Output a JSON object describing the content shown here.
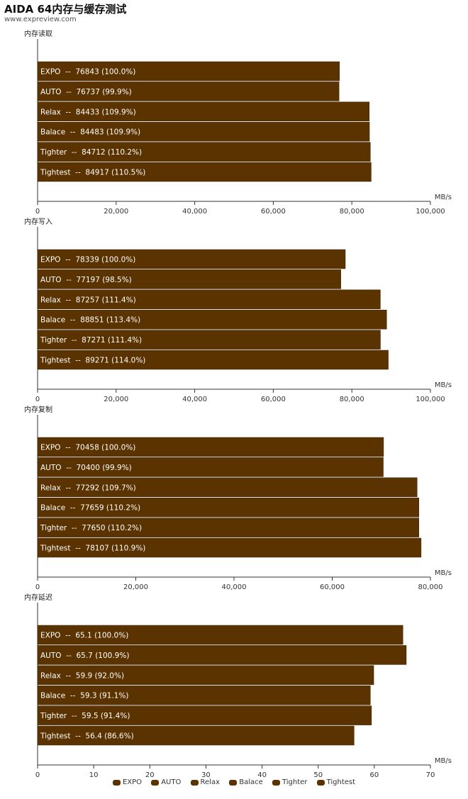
{
  "header": {
    "title": "AIDA 64内存与缓存测试",
    "subtitle": "www.expreview.com"
  },
  "colors": {
    "bar": "#5a3300",
    "bar_stroke": "#3a2000",
    "bar_text": "#ffffff",
    "axis": "#333333"
  },
  "chart_data": [
    {
      "type": "bar",
      "orientation": "horizontal",
      "title": "内存读取",
      "unit": "MB/s",
      "xlim": [
        0,
        100000
      ],
      "ticks": [
        "0",
        "20,000",
        "40,000",
        "60,000",
        "80,000",
        "100,000"
      ],
      "tick_values": [
        0,
        20000,
        40000,
        60000,
        80000,
        100000
      ],
      "categories": [
        "EXPO",
        "AUTO",
        "Relax",
        "Balace",
        "Tighter",
        "Tightest"
      ],
      "values": [
        76843,
        76737,
        84433,
        84483,
        84712,
        84917
      ],
      "labels": [
        "EXPO  --  76843 (100.0%)",
        "AUTO  --  76737 (99.9%)",
        "Relax  --  84433 (109.9%)",
        "Balace  --  84483 (109.9%)",
        "Tighter  --  84712 (110.2%)",
        "Tightest  --  84917 (110.5%)"
      ]
    },
    {
      "type": "bar",
      "orientation": "horizontal",
      "title": "内存写入",
      "unit": "MB/s",
      "xlim": [
        0,
        100000
      ],
      "ticks": [
        "0",
        "20,000",
        "40,000",
        "60,000",
        "80,000",
        "100,000"
      ],
      "tick_values": [
        0,
        20000,
        40000,
        60000,
        80000,
        100000
      ],
      "categories": [
        "EXPO",
        "AUTO",
        "Relax",
        "Balace",
        "Tighter",
        "Tightest"
      ],
      "values": [
        78339,
        77197,
        87257,
        88851,
        87271,
        89271
      ],
      "labels": [
        "EXPO  --  78339 (100.0%)",
        "AUTO  --  77197 (98.5%)",
        "Relax  --  87257 (111.4%)",
        "Balace  --  88851 (113.4%)",
        "Tighter  --  87271 (111.4%)",
        "Tightest  --  89271 (114.0%)"
      ]
    },
    {
      "type": "bar",
      "orientation": "horizontal",
      "title": "内存复制",
      "unit": "MB/s",
      "xlim": [
        0,
        80000
      ],
      "ticks": [
        "0",
        "20,000",
        "40,000",
        "60,000",
        "80,000"
      ],
      "tick_values": [
        0,
        20000,
        40000,
        60000,
        80000
      ],
      "categories": [
        "EXPO",
        "AUTO",
        "Relax",
        "Balace",
        "Tighter",
        "Tightest"
      ],
      "values": [
        70458,
        70400,
        77292,
        77659,
        77650,
        78107
      ],
      "labels": [
        "EXPO  --  70458 (100.0%)",
        "AUTO  --  70400 (99.9%)",
        "Relax  --  77292 (109.7%)",
        "Balace  --  77659 (110.2%)",
        "Tighter  --  77650 (110.2%)",
        "Tightest  --  78107 (110.9%)"
      ]
    },
    {
      "type": "bar",
      "orientation": "horizontal",
      "title": "内存延迟",
      "unit": "MB/s",
      "xlim": [
        0,
        70
      ],
      "ticks": [
        "0",
        "10",
        "20",
        "30",
        "40",
        "50",
        "60",
        "70"
      ],
      "tick_values": [
        0,
        10,
        20,
        30,
        40,
        50,
        60,
        70
      ],
      "categories": [
        "EXPO",
        "AUTO",
        "Relax",
        "Balace",
        "Tighter",
        "Tightest"
      ],
      "values": [
        65.1,
        65.7,
        59.9,
        59.3,
        59.5,
        56.4
      ],
      "labels": [
        "EXPO  --  65.1 (100.0%)",
        "AUTO  --  65.7 (100.9%)",
        "Relax  --  59.9 (92.0%)",
        "Balace  --  59.3 (91.1%)",
        "Tighter  --  59.5 (91.4%)",
        "Tightest  --  56.4 (86.6%)"
      ]
    }
  ],
  "legend": {
    "position": "bottom-center",
    "items": [
      "EXPO",
      "AUTO",
      "Relax",
      "Balace",
      "Tighter",
      "Tightest"
    ]
  }
}
